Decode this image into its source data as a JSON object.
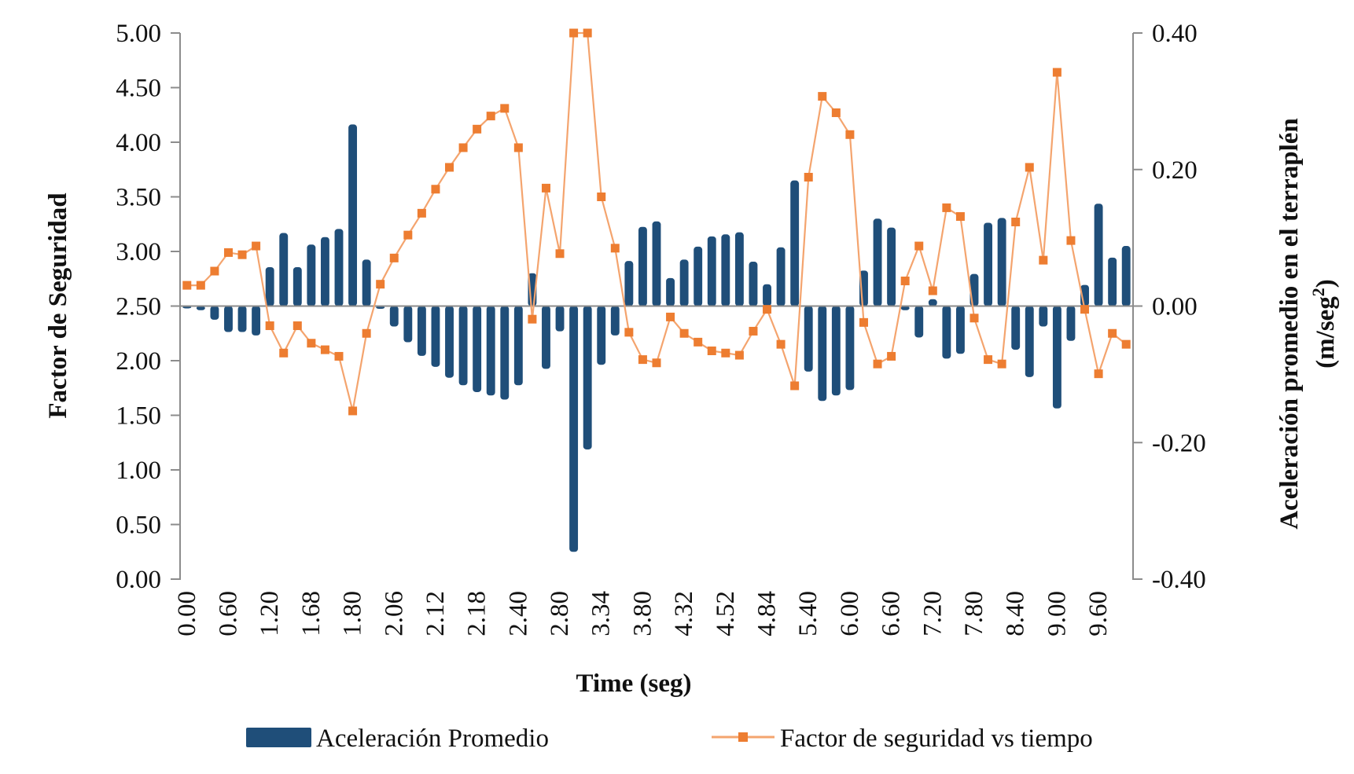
{
  "chart_data": {
    "type": "bar+line",
    "title": "",
    "xlabel": "Time (seg)",
    "ylabel_left": "Factor de Seguridad",
    "ylabel_right": "Aceleración promedio en el terraplén",
    "ylabel_right_unit_prefix": "(m/seg",
    "ylabel_right_unit_sup": "2",
    "ylabel_right_unit_suffix": ")",
    "ylim_left": [
      0,
      5
    ],
    "yticks_left": [
      "0.00",
      "0.50",
      "1.00",
      "1.50",
      "2.00",
      "2.50",
      "3.00",
      "3.50",
      "4.00",
      "4.50",
      "5.00"
    ],
    "ylim_right": [
      -0.4,
      0.4
    ],
    "yticks_right": [
      "-0.40",
      "-0.20",
      "0.00",
      "0.20",
      "0.40"
    ],
    "grid": false,
    "legend_position": "bottom",
    "category_count": 69,
    "tick_every": 3,
    "x_tick_labels": [
      "0.00",
      "0.60",
      "1.20",
      "1.68",
      "1.80",
      "2.06",
      "2.12",
      "2.18",
      "2.40",
      "2.80",
      "3.34",
      "3.80",
      "4.32",
      "4.52",
      "4.84",
      "5.40",
      "6.00",
      "6.60",
      "7.20",
      "7.80",
      "8.40",
      "9.00",
      "9.60"
    ],
    "series": [
      {
        "name": "Aceleración Promedio",
        "type": "bar",
        "axis": "right",
        "color": "#1F4E79",
        "values": [
          0.0,
          -0.006,
          -0.02,
          -0.038,
          -0.038,
          -0.043,
          0.057,
          0.107,
          0.057,
          0.09,
          0.101,
          0.113,
          0.266,
          0.068,
          -0.004,
          -0.03,
          -0.053,
          -0.073,
          -0.089,
          -0.105,
          -0.116,
          -0.126,
          -0.131,
          -0.137,
          -0.116,
          0.048,
          -0.092,
          -0.037,
          -0.36,
          -0.21,
          -0.086,
          -0.043,
          0.066,
          0.116,
          0.124,
          0.041,
          0.068,
          0.087,
          0.102,
          0.105,
          0.108,
          0.065,
          0.032,
          0.086,
          0.184,
          -0.096,
          -0.139,
          -0.131,
          -0.123,
          0.052,
          0.128,
          0.115,
          -0.006,
          -0.046,
          0.01,
          -0.077,
          -0.07,
          0.047,
          0.122,
          0.129,
          -0.064,
          -0.104,
          -0.03,
          -0.15,
          -0.051,
          0.031,
          0.15,
          0.071,
          0.088
        ]
      },
      {
        "name": "Factor de seguridad vs tiempo",
        "type": "line",
        "axis": "left",
        "color": "#ED7D31",
        "line_color": "#F4A46E",
        "values": [
          2.69,
          2.69,
          2.82,
          2.99,
          2.97,
          3.05,
          2.32,
          2.07,
          2.32,
          2.16,
          2.1,
          2.04,
          1.54,
          2.25,
          2.7,
          2.94,
          3.15,
          3.35,
          3.57,
          3.77,
          3.95,
          4.12,
          4.24,
          4.31,
          3.95,
          2.38,
          3.58,
          2.98,
          5.0,
          5.0,
          3.5,
          3.03,
          2.26,
          2.01,
          1.98,
          2.4,
          2.25,
          2.17,
          2.09,
          2.07,
          2.05,
          2.27,
          2.47,
          2.15,
          1.77,
          3.68,
          4.42,
          4.27,
          4.07,
          2.35,
          1.97,
          2.04,
          2.73,
          3.05,
          2.64,
          3.4,
          3.32,
          2.39,
          2.01,
          1.97,
          3.27,
          3.77,
          2.92,
          4.64,
          3.1,
          2.47,
          1.88,
          2.25,
          2.15
        ]
      }
    ]
  },
  "legend": {
    "bar_label": "Aceleración Promedio",
    "line_label": "Factor de seguridad vs tiempo"
  }
}
